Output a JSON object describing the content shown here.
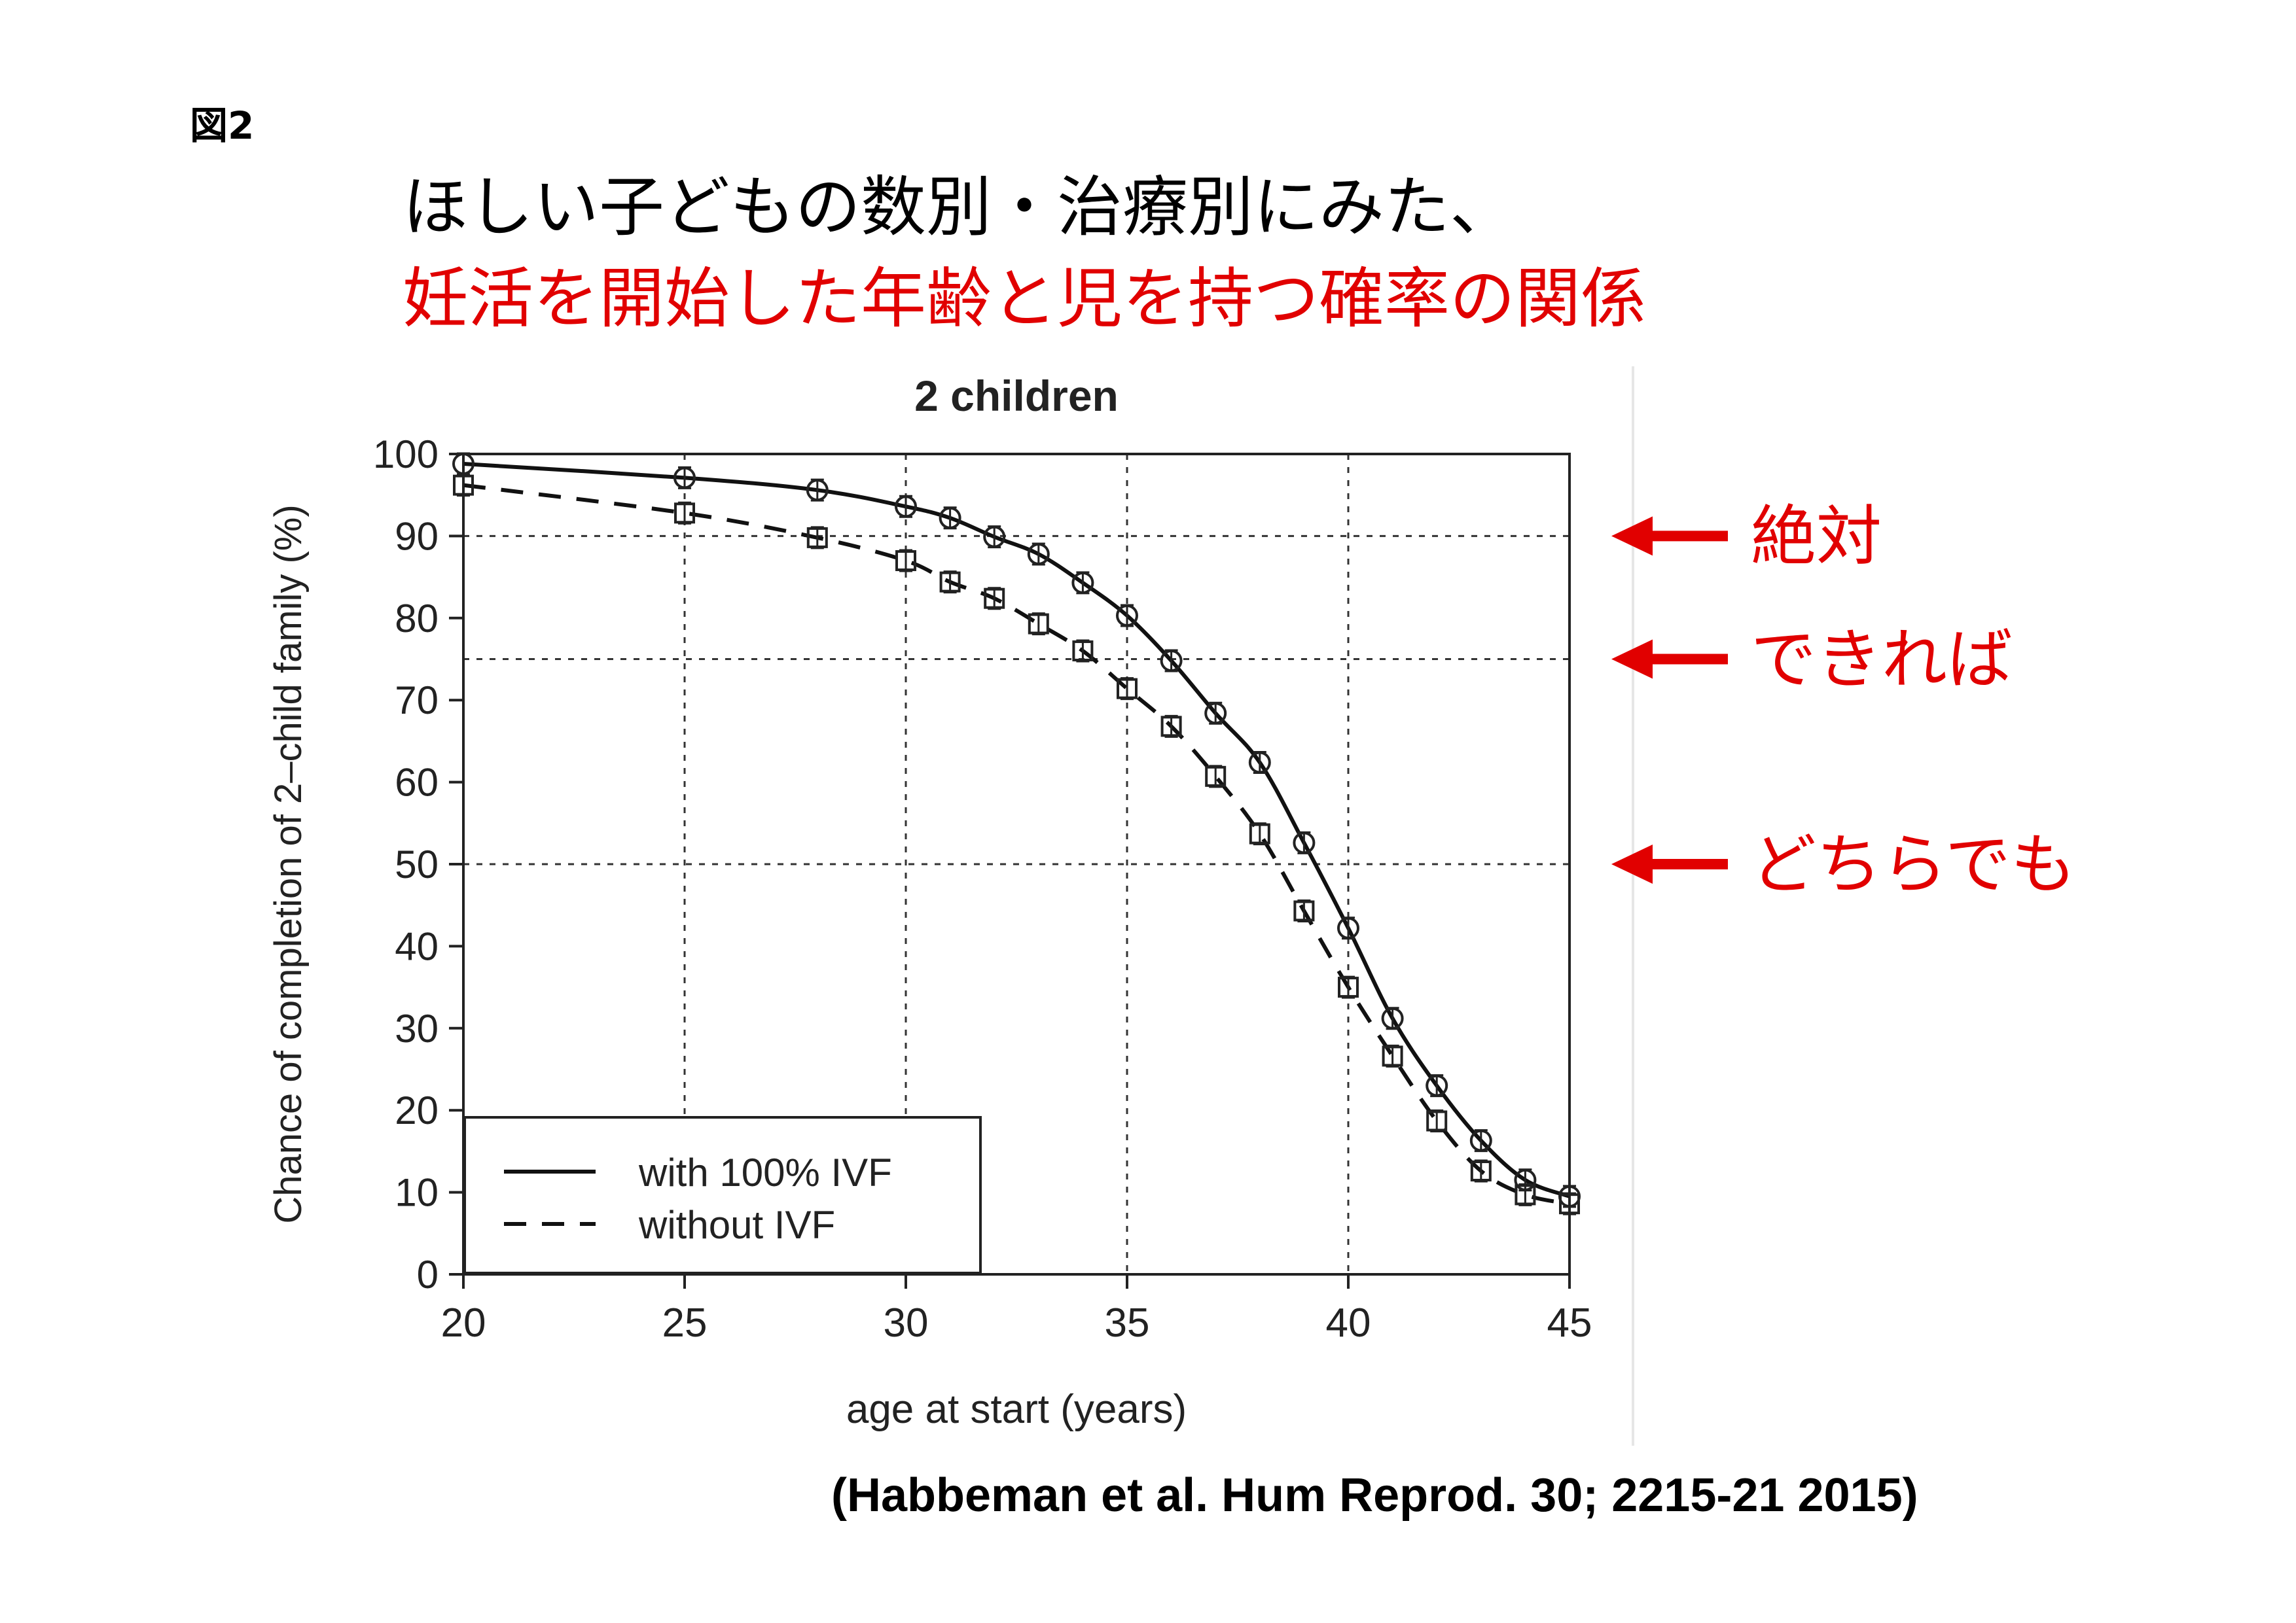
{
  "header": {
    "figure_label": "図2",
    "title_line1": "ほしい子どもの数別・治療別にみた、",
    "title_line2": "妊活を開始した年齢と児を持つ確率の関係"
  },
  "citation": "(Habbeman et al. Hum Reprod. 30; 2215-21 2015)",
  "colors": {
    "accent": "#e10000",
    "text": "#000000",
    "grid": "#333333"
  },
  "chart_data": {
    "type": "line",
    "title": "2 children",
    "xlabel": "age at start (years)",
    "ylabel": "Chance of completion of 2–child family (%)",
    "xlim": [
      20,
      45
    ],
    "ylim": [
      0,
      100
    ],
    "xticks": [
      20,
      25,
      30,
      35,
      40,
      45
    ],
    "yticks": [
      0,
      10,
      20,
      30,
      40,
      50,
      60,
      70,
      80,
      90,
      100
    ],
    "vertical_grid": [
      25,
      30,
      35,
      40
    ],
    "horizontal_grid": [
      50,
      75,
      90
    ],
    "legend_position": "bottom-left",
    "series": [
      {
        "name": "with 100% IVF",
        "style": "solid",
        "marker": "circle",
        "x": [
          20,
          25,
          28,
          30,
          31,
          32,
          33,
          34,
          35,
          36,
          37,
          38,
          39,
          40,
          41,
          42,
          43,
          44,
          45
        ],
        "y": [
          98.8,
          97.1,
          95.6,
          93.6,
          92.2,
          89.9,
          87.8,
          84.3,
          80.3,
          74.8,
          68.4,
          62.4,
          52.6,
          42.2,
          31.2,
          23.0,
          16.3,
          11.5,
          9.5
        ]
      },
      {
        "name": "without IVF",
        "style": "dashed",
        "marker": "square",
        "x": [
          20,
          25,
          28,
          30,
          31,
          32,
          33,
          34,
          35,
          36,
          37,
          38,
          39,
          40,
          41,
          42,
          43,
          44,
          45
        ],
        "y": [
          96.2,
          92.8,
          89.8,
          87.0,
          84.4,
          82.4,
          79.3,
          76.0,
          71.4,
          66.8,
          60.7,
          53.7,
          44.3,
          35.0,
          26.6,
          18.7,
          12.6,
          9.7,
          8.6
        ]
      }
    ],
    "annotations": [
      {
        "label": "絶対",
        "y": 90
      },
      {
        "label": "できれば",
        "y": 75
      },
      {
        "label": "どちらでも",
        "y": 50
      }
    ]
  }
}
